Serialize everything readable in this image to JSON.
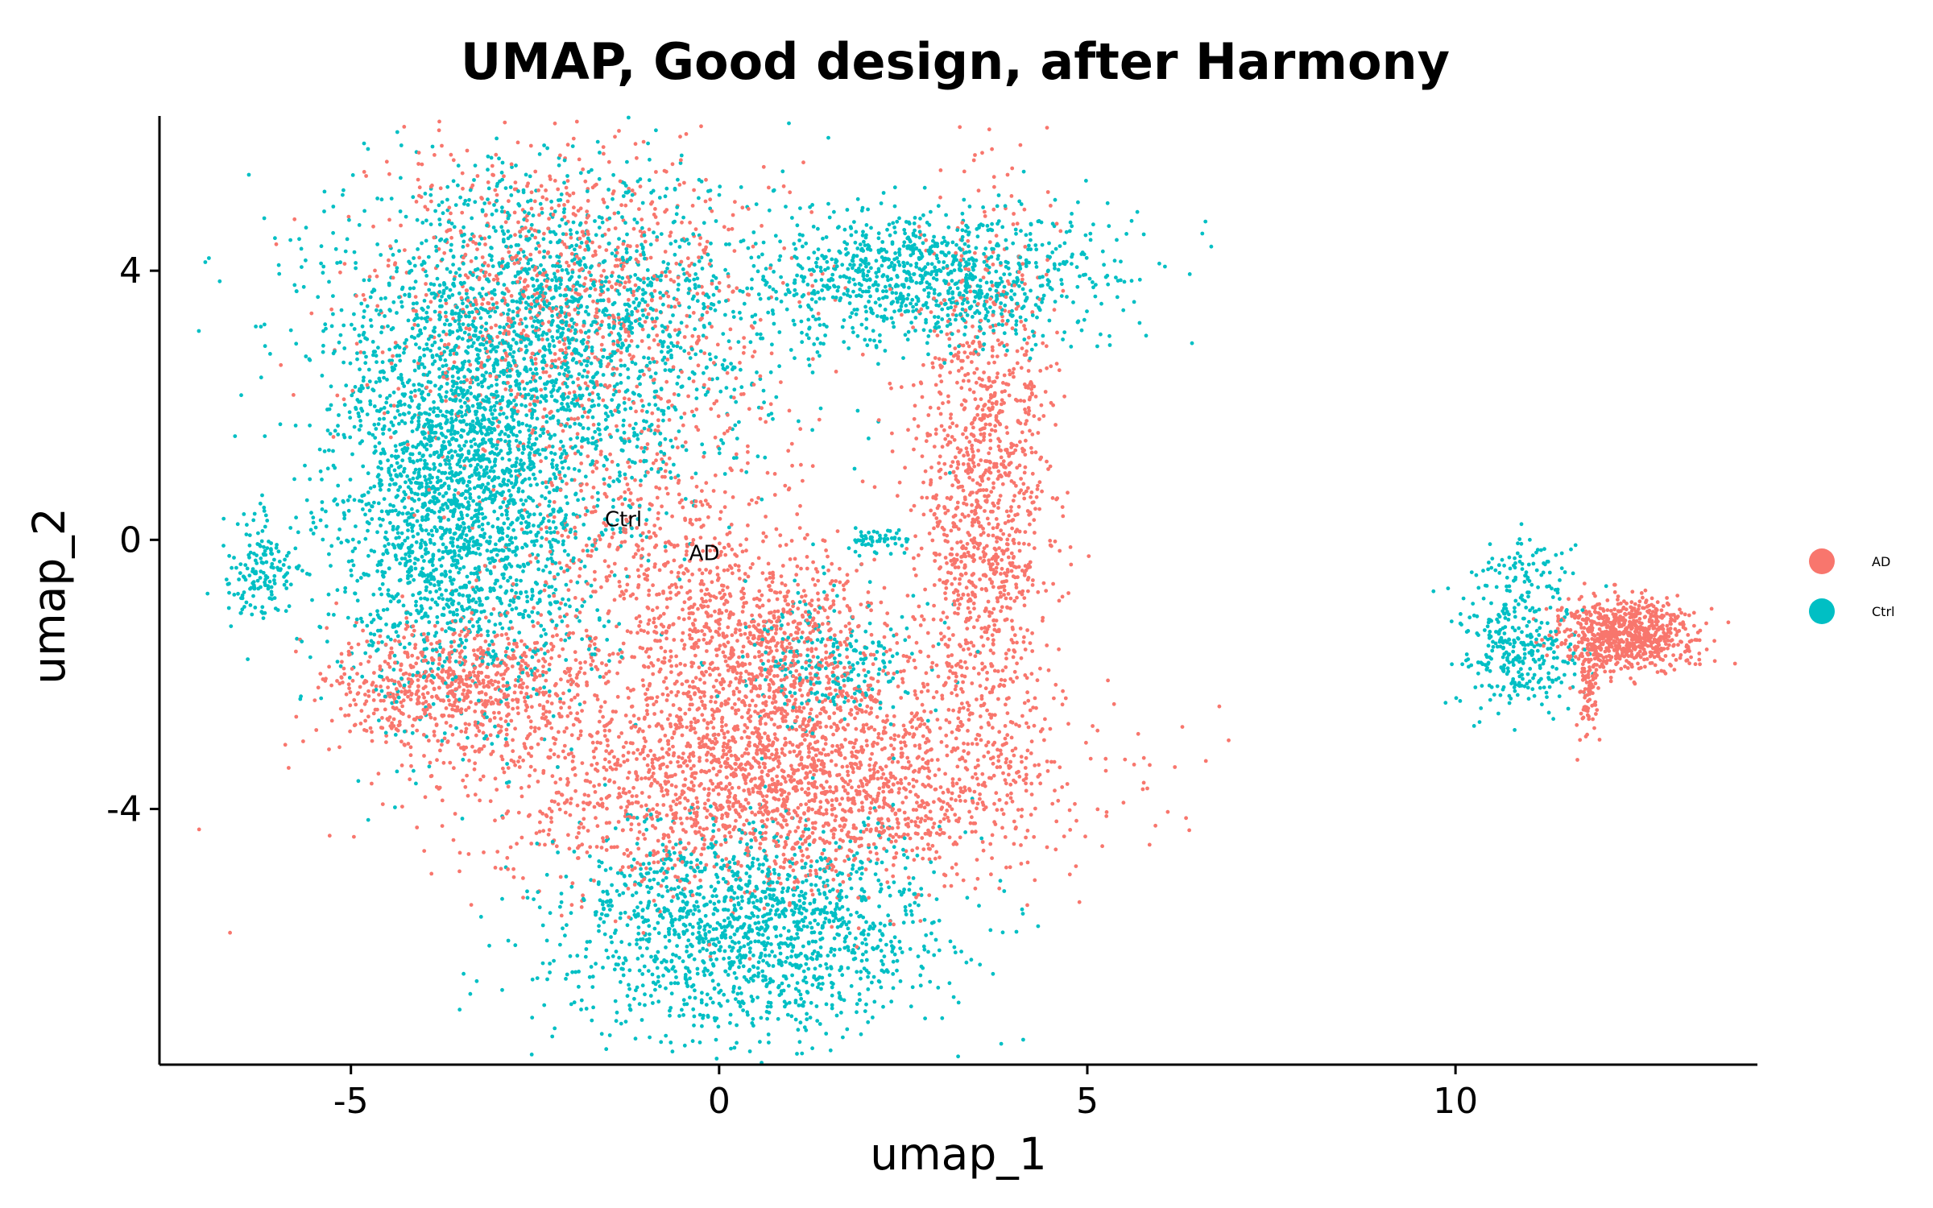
{
  "chart_data": {
    "type": "scatter",
    "title": "UMAP, Good design, after Harmony",
    "xlabel": "umap_1",
    "ylabel": "umap_2",
    "xlim": [
      -7.6,
      14.1
    ],
    "ylim": [
      -7.8,
      6.3
    ],
    "x_ticks": [
      -5,
      0,
      5,
      10
    ],
    "x_tick_labels": [
      "-5",
      "0",
      "5",
      "10"
    ],
    "y_ticks": [
      -4,
      0,
      4
    ],
    "y_tick_labels": [
      "-4",
      "0",
      "4"
    ],
    "grid": false,
    "legend_position": "right",
    "series": [
      {
        "name": "AD",
        "color": "#F8766D",
        "clusters": [
          {
            "cx": 0.8,
            "cy": -3.6,
            "sx": 1.9,
            "sy": 0.8,
            "w": 9
          },
          {
            "cx": 3.6,
            "cy": 0.6,
            "sx": 0.45,
            "sy": 2.0,
            "w": 5
          },
          {
            "cx": -2.0,
            "cy": 3.6,
            "sx": 1.4,
            "sy": 1.2,
            "w": 4
          },
          {
            "cx": -3.5,
            "cy": -2.2,
            "sx": 0.9,
            "sy": 0.5,
            "w": 3
          },
          {
            "cx": 0.6,
            "cy": -1.6,
            "sx": 0.9,
            "sy": 0.7,
            "w": 3
          },
          {
            "cx": -1.0,
            "cy": -0.3,
            "sx": 1.0,
            "sy": 1.0,
            "w": 2
          },
          {
            "cx": 12.3,
            "cy": -1.4,
            "sx": 0.45,
            "sy": 0.25,
            "w": 3
          },
          {
            "cx": 11.8,
            "cy": -2.3,
            "sx": 0.08,
            "sy": 0.3,
            "w": 0.3
          }
        ]
      },
      {
        "name": "Ctrl",
        "color": "#00BFC4",
        "clusters": [
          {
            "cx": -2.5,
            "cy": 3.0,
            "sx": 1.5,
            "sy": 1.3,
            "w": 8
          },
          {
            "cx": -3.5,
            "cy": 0.3,
            "sx": 0.9,
            "sy": 1.4,
            "w": 8
          },
          {
            "cx": 2.8,
            "cy": 3.9,
            "sx": 1.2,
            "sy": 0.5,
            "w": 4
          },
          {
            "cx": 0.3,
            "cy": -5.8,
            "sx": 1.3,
            "sy": 0.8,
            "w": 6
          },
          {
            "cx": -6.2,
            "cy": -0.5,
            "sx": 0.25,
            "sy": 0.4,
            "w": 0.6
          },
          {
            "cx": 1.5,
            "cy": -1.8,
            "sx": 0.6,
            "sy": 0.5,
            "w": 1
          },
          {
            "cx": 2.1,
            "cy": 0.0,
            "sx": 0.2,
            "sy": 0.1,
            "w": 0.2
          },
          {
            "cx": 10.9,
            "cy": -1.7,
            "sx": 0.4,
            "sy": 0.45,
            "w": 1.2
          },
          {
            "cx": 10.9,
            "cy": -0.5,
            "sx": 0.35,
            "sy": 0.25,
            "w": 0.3
          }
        ]
      }
    ],
    "annotations": [
      {
        "text": "Ctrl",
        "x": -1.3,
        "y": 0.2
      },
      {
        "text": "AD",
        "x": -0.2,
        "y": -0.3
      }
    ],
    "legend": [
      {
        "label": "AD",
        "color": "#F8766D"
      },
      {
        "label": "Ctrl",
        "color": "#00BFC4"
      }
    ]
  }
}
